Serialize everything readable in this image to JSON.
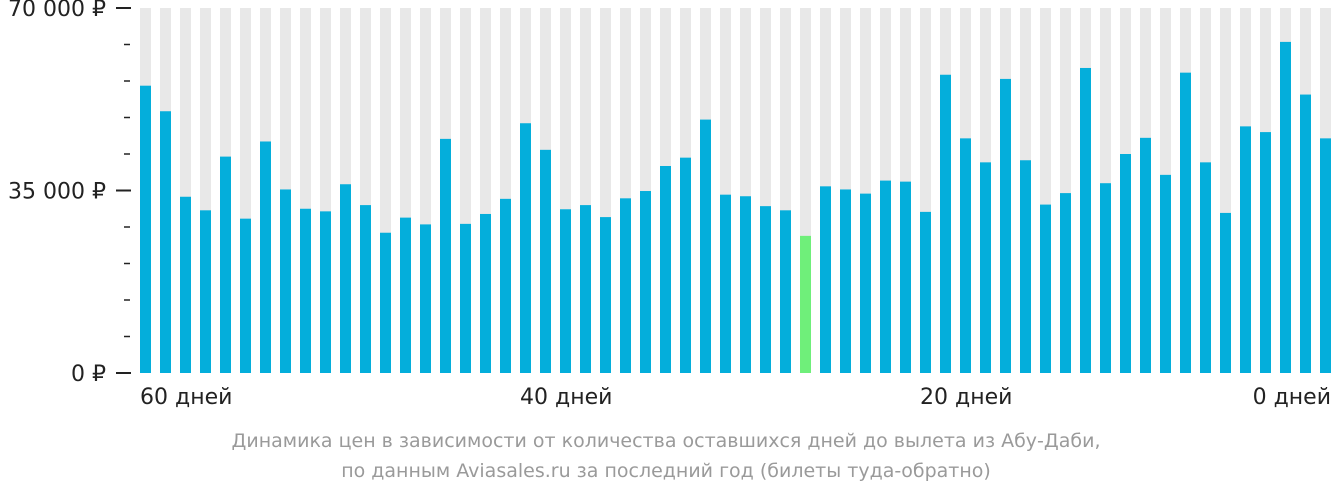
{
  "chart_data": {
    "type": "bar",
    "title": "",
    "xlabel": "",
    "ylabel": "",
    "ylim": [
      0,
      70000
    ],
    "y_ticks": [
      {
        "value": 70000,
        "label": "70 000 ₽"
      },
      {
        "value": 35000,
        "label": "35 000 ₽"
      },
      {
        "value": 0,
        "label": "0 ₽"
      }
    ],
    "y_minor_tick_step": 7000,
    "x_ticks": [
      {
        "days": 60,
        "label": "60 дней"
      },
      {
        "days": 40,
        "label": "40 дней"
      },
      {
        "days": 20,
        "label": "20 дней"
      },
      {
        "days": 0,
        "label": "0 дней"
      }
    ],
    "days_left": [
      59,
      58,
      57,
      56,
      55,
      54,
      53,
      52,
      51,
      50,
      49,
      48,
      47,
      46,
      45,
      44,
      43,
      42,
      41,
      40,
      39,
      38,
      37,
      36,
      35,
      34,
      33,
      32,
      31,
      30,
      29,
      28,
      27,
      26,
      25,
      24,
      23,
      22,
      21,
      20,
      19,
      18,
      17,
      16,
      15,
      14,
      13,
      12,
      11,
      10,
      9,
      8,
      7,
      6,
      5,
      4,
      3,
      2,
      1,
      0
    ],
    "values": [
      55100,
      50200,
      33800,
      31200,
      41500,
      29600,
      44400,
      35200,
      31500,
      31000,
      36200,
      32200,
      26900,
      29800,
      28500,
      44900,
      28600,
      30500,
      33400,
      47900,
      42800,
      31400,
      32200,
      29900,
      33500,
      34900,
      39700,
      41300,
      48600,
      34200,
      33900,
      32000,
      31200,
      26300,
      35800,
      35200,
      34400,
      36900,
      36700,
      30900,
      57200,
      45000,
      40400,
      56400,
      40800,
      32300,
      34500,
      58500,
      36400,
      42000,
      45100,
      38000,
      57600,
      40400,
      30700,
      47300,
      46200,
      63500,
      53400,
      45000
    ],
    "highlight_index": 33,
    "colors": {
      "bar": "#04aedb",
      "highlight": "#6fef7a",
      "background_stripe": "#e8e8e8",
      "axis": "#222222"
    }
  },
  "caption": {
    "line1": "Динамика цен в зависимости от количества оставшихся дней до вылета из Абу-Даби,",
    "line2": "по данным Aviasales.ru за последний год (билеты туда-обратно)"
  }
}
